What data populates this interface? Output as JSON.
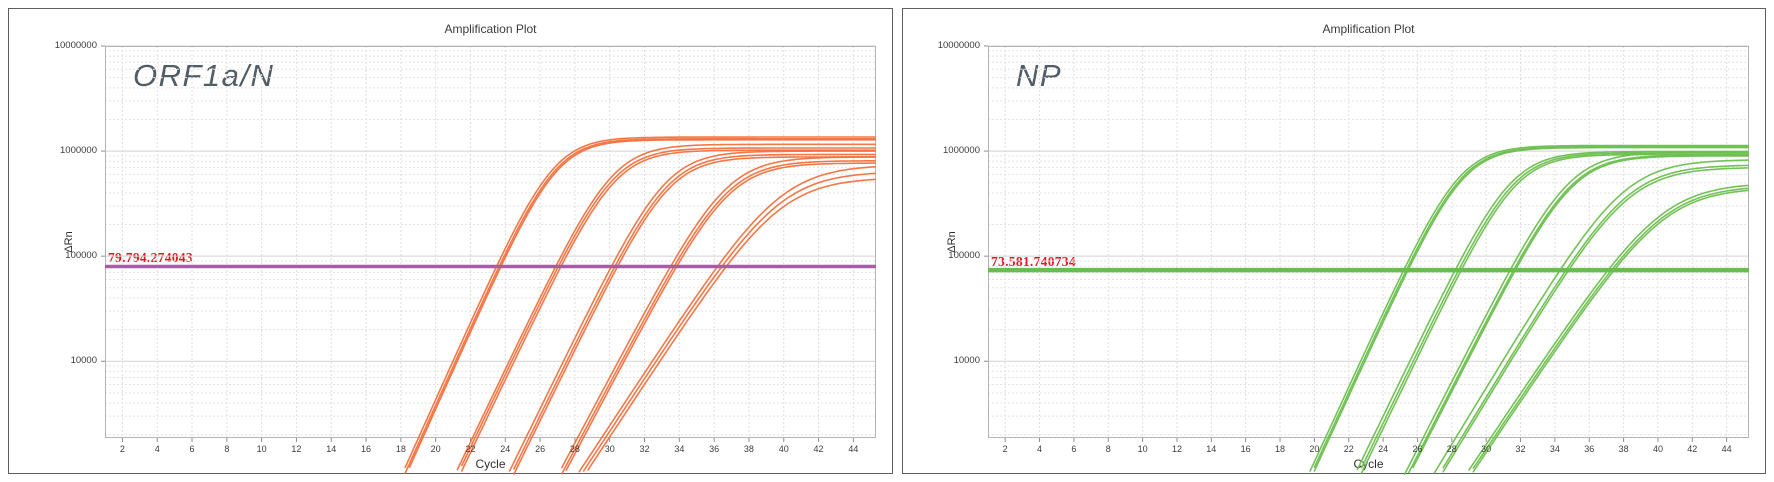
{
  "chart_data": [
    {
      "type": "line",
      "title": "Amplification Plot",
      "assay_label": "ORF1a/N",
      "xlabel": "Cycle",
      "ylabel": "ΔRn",
      "x_ticks": [
        2,
        4,
        6,
        8,
        10,
        12,
        14,
        16,
        18,
        20,
        22,
        24,
        26,
        28,
        30,
        32,
        34,
        36,
        38,
        40,
        42,
        44
      ],
      "xlim": [
        1,
        45.3
      ],
      "y_scale": "log",
      "ylim": [
        1860,
        10000000
      ],
      "y_ticks": [
        10000,
        100000,
        1000000,
        10000000
      ],
      "y_tick_labels": [
        "10000",
        "100000",
        "1000000",
        "10000000"
      ],
      "grid": true,
      "series_color": "#f3703d",
      "threshold": 79794.274043,
      "threshold_label": "79.794.274043",
      "threshold_color": "#a85ca6",
      "threshold_label_color": "#e4151e",
      "threshold_line_width": 3.5,
      "groups": [
        {
          "k": 0.85,
          "replicates": [
            {
              "ct": 23.5,
              "plateau": 1360000
            },
            {
              "ct": 23.65,
              "plateau": 1310000
            },
            {
              "ct": 23.75,
              "plateau": 1280000
            }
          ]
        },
        {
          "k": 0.8,
          "replicates": [
            {
              "ct": 26.9,
              "plateau": 1160000
            },
            {
              "ct": 27.05,
              "plateau": 1070000
            },
            {
              "ct": 27.2,
              "plateau": 1020000
            }
          ]
        },
        {
          "k": 0.78,
          "replicates": [
            {
              "ct": 30.1,
              "plateau": 1000000
            },
            {
              "ct": 30.3,
              "plateau": 930000
            },
            {
              "ct": 30.45,
              "plateau": 880000
            }
          ]
        },
        {
          "k": 0.72,
          "replicates": [
            {
              "ct": 33.5,
              "plateau": 880000
            },
            {
              "ct": 33.7,
              "plateau": 810000
            },
            {
              "ct": 33.85,
              "plateau": 770000
            }
          ]
        },
        {
          "k": 0.58,
          "replicates": [
            {
              "ct": 36.2,
              "plateau": 740000
            },
            {
              "ct": 36.45,
              "plateau": 640000
            },
            {
              "ct": 36.7,
              "plateau": 560000
            }
          ]
        }
      ]
    },
    {
      "type": "line",
      "title": "Amplification Plot",
      "assay_label": "NP",
      "xlabel": "Cycle",
      "ylabel": "ΔRn",
      "x_ticks": [
        2,
        4,
        6,
        8,
        10,
        12,
        14,
        16,
        18,
        20,
        22,
        24,
        26,
        28,
        30,
        32,
        34,
        36,
        38,
        40,
        42,
        44
      ],
      "xlim": [
        1,
        45.3
      ],
      "y_scale": "log",
      "ylim": [
        1860,
        10000000
      ],
      "y_ticks": [
        10000,
        100000,
        1000000,
        10000000
      ],
      "y_tick_labels": [
        "10000",
        "100000",
        "1000000",
        "10000000"
      ],
      "grid": true,
      "series_color": "#6cbf4e",
      "threshold": 73581.740734,
      "threshold_label": "73.581.740734",
      "threshold_color": "#68bd4c",
      "threshold_label_color": "#e4151e",
      "threshold_line_width": 4.5,
      "groups": [
        {
          "k": 0.82,
          "replicates": [
            {
              "ct": 25.2,
              "plateau": 1130000
            },
            {
              "ct": 25.35,
              "plateau": 1100000
            },
            {
              "ct": 25.45,
              "plateau": 1080000
            }
          ]
        },
        {
          "k": 0.78,
          "replicates": [
            {
              "ct": 28.2,
              "plateau": 990000
            },
            {
              "ct": 28.4,
              "plateau": 960000
            },
            {
              "ct": 28.55,
              "plateau": 930000
            }
          ]
        },
        {
          "k": 0.74,
          "replicates": [
            {
              "ct": 31.4,
              "plateau": 980000
            },
            {
              "ct": 31.6,
              "plateau": 920000
            },
            {
              "ct": 31.7,
              "plateau": 900000
            }
          ]
        },
        {
          "k": 0.62,
          "replicates": [
            {
              "ct": 34.3,
              "plateau": 830000
            },
            {
              "ct": 34.65,
              "plateau": 740000
            },
            {
              "ct": 34.8,
              "plateau": 700000
            }
          ]
        },
        {
          "k": 0.56,
          "replicates": [
            {
              "ct": 37.1,
              "plateau": 500000
            },
            {
              "ct": 37.3,
              "plateau": 470000
            },
            {
              "ct": 37.45,
              "plateau": 450000
            }
          ]
        }
      ]
    }
  ]
}
